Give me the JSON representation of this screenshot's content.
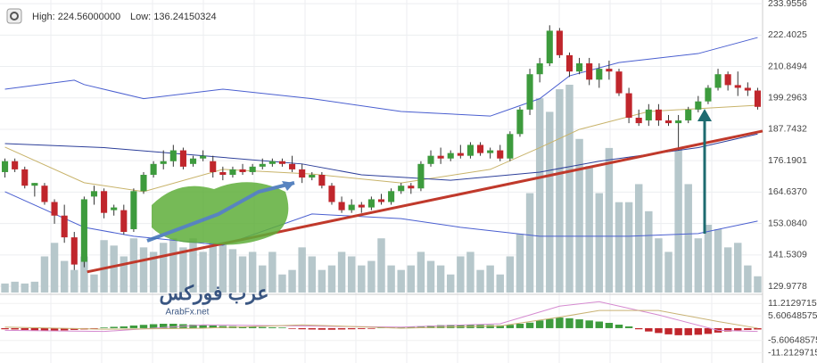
{
  "chart_data": {
    "type": "candlestick",
    "stats": [
      "High: 224.56000000",
      "Low: 136.24150324"
    ],
    "ylim": [
      127.7,
      235.3
    ],
    "yticks": [
      233.9556,
      222.4025,
      210.8494,
      199.2963,
      187.7432,
      176.1901,
      {
        "value": 164.637,
        "label": "164.6370"
      },
      {
        "value": 153.084,
        "label": "153.0840"
      },
      141.5309,
      129.9778
    ],
    "grid": true,
    "up_color": "#3d9b3d",
    "down_color": "#c0262c",
    "open": [
      172,
      176,
      173,
      167,
      167,
      161,
      156,
      148,
      139,
      163,
      165,
      158,
      158,
      151,
      165,
      171,
      175,
      176,
      180,
      175,
      177,
      176,
      172,
      171,
      173,
      172,
      174,
      175,
      176,
      175,
      173,
      170,
      171,
      167,
      161,
      158,
      160,
      159,
      162,
      161,
      165,
      167,
      166,
      175,
      178,
      177,
      179,
      178,
      182,
      179,
      180,
      177,
      186,
      195,
      208,
      212,
      224,
      215,
      209,
      212,
      206,
      210,
      209,
      201,
      192,
      191,
      195,
      191,
      190,
      191,
      195,
      198,
      203,
      208,
      204,
      203,
      202
    ],
    "high": [
      177,
      177,
      174,
      168,
      168,
      162,
      160,
      150,
      163,
      167,
      166,
      160,
      160,
      166,
      172,
      176,
      180,
      182,
      181,
      178,
      180,
      178,
      174,
      174,
      175,
      175,
      177,
      177,
      177,
      178,
      175,
      172,
      172,
      168,
      163,
      162,
      161,
      163,
      164,
      166,
      168,
      168,
      176,
      180,
      181,
      180,
      182,
      183,
      183,
      181,
      182,
      187,
      196,
      210,
      214,
      226,
      225,
      216,
      214,
      214,
      212,
      213,
      210,
      203,
      195,
      197,
      197,
      193,
      193,
      196,
      200,
      204,
      210,
      209,
      209,
      205,
      203
    ],
    "low": [
      170,
      172,
      166,
      163,
      160,
      153,
      146,
      136,
      137,
      160,
      155,
      156,
      149,
      150,
      164,
      170,
      173,
      174,
      173,
      174,
      176,
      170,
      169,
      170,
      171,
      171,
      173,
      174,
      174,
      172,
      168,
      169,
      166,
      160,
      157,
      157,
      157,
      158,
      160,
      160,
      164,
      164,
      165,
      174,
      175,
      176,
      177,
      177,
      178,
      177,
      176,
      176,
      185,
      193,
      205,
      211,
      214,
      207,
      208,
      204,
      203,
      206,
      200,
      190,
      189,
      189,
      189,
      189,
      180,
      190,
      194,
      197,
      202,
      202,
      200,
      200,
      195
    ],
    "close": [
      176,
      173,
      167,
      168,
      161,
      156,
      148,
      138,
      162,
      165,
      157,
      159,
      150,
      165,
      171,
      175,
      176,
      180,
      174,
      177,
      178,
      172,
      171,
      173,
      172,
      174,
      175,
      176,
      175,
      173,
      170,
      171,
      167,
      161,
      158,
      160,
      159,
      162,
      161,
      165,
      167,
      166,
      175,
      178,
      177,
      179,
      178,
      182,
      179,
      180,
      177,
      186,
      195,
      208,
      212,
      224,
      215,
      209,
      212,
      206,
      210,
      209,
      201,
      192,
      190,
      195,
      191,
      190,
      191,
      195,
      198,
      203,
      208,
      204,
      203,
      202,
      196
    ],
    "volume": {
      "color": "#b6c7cb",
      "values": [
        10,
        12,
        10,
        12,
        40,
        55,
        35,
        25,
        40,
        20,
        58,
        52,
        40,
        60,
        50,
        45,
        55,
        60,
        50,
        60,
        45,
        55,
        55,
        48,
        40,
        45,
        30,
        45,
        20,
        25,
        50,
        40,
        25,
        30,
        45,
        40,
        30,
        35,
        60,
        30,
        25,
        30,
        45,
        35,
        30,
        20,
        40,
        45,
        25,
        30,
        20,
        40,
        65,
        110,
        215,
        200,
        225,
        230,
        170,
        140,
        110,
        160,
        100,
        100,
        120,
        90,
        60,
        45,
        160,
        120,
        60,
        75,
        70,
        50,
        55,
        30,
        18
      ]
    },
    "lines": [
      {
        "color": "#4a5fd0",
        "x": [
          0,
          7,
          8,
          14,
          22,
          31,
          40,
          49,
          54,
          57,
          62,
          70,
          76
        ],
        "values": [
          202.5,
          205.8,
          204.2,
          199,
          202.5,
          199,
          194.3,
          192.6,
          199,
          207.4,
          212.3,
          215.6,
          221.5
        ]
      },
      {
        "color": "#c8b36a",
        "x": [
          0,
          8,
          14,
          22,
          31,
          40,
          49,
          54,
          58,
          65,
          76
        ],
        "values": [
          181.2,
          168.1,
          164.8,
          173,
          171.3,
          168,
          173,
          181,
          187.7,
          194.3,
          196.6
        ]
      },
      {
        "color": "#4a5fd0",
        "x": [
          0,
          8,
          13,
          22,
          31,
          40,
          46,
          54,
          63,
          70,
          76
        ],
        "values": [
          164.8,
          151.7,
          148.4,
          145.1,
          156.6,
          154.9,
          151.7,
          148.4,
          148.4,
          149.4,
          154
        ]
      },
      {
        "color": "#2d3f9a",
        "x": [
          0,
          10,
          20,
          30,
          36,
          45,
          54,
          60,
          70,
          76
        ],
        "values": [
          182.5,
          181,
          178,
          175,
          171,
          169,
          172,
          176,
          181,
          186
        ]
      }
    ],
    "trendline": {
      "color": "#c0392b",
      "x": [
        8.3,
        76.5
      ],
      "values": [
        135.3,
        187.1
      ]
    },
    "macd": {
      "ylim": [
        -15.8,
        15.35
      ],
      "yticks": [
        {
          "value": 11.2129715,
          "label": "11.21297150"
        },
        5.60648575,
        -5.60648575,
        {
          "value": -11.2129715,
          "label": "-11.21297150"
        }
      ],
      "pos_color": "#3d9b3d",
      "neg_color": "#c0262c",
      "histogram": [
        -0.5,
        -0.6,
        -0.8,
        -1,
        -1.2,
        -1.2,
        -1,
        -0.8,
        -0.6,
        -0.4,
        0.3,
        0.6,
        0.8,
        1.2,
        1.5,
        1.8,
        2,
        2,
        1.8,
        1.6,
        1.4,
        1.2,
        1,
        0.9,
        0.8,
        0.6,
        0.5,
        0.4,
        0.3,
        -0.3,
        -0.5,
        -0.6,
        -0.7,
        -0.7,
        -0.6,
        -0.5,
        -0.4,
        -0.3,
        0.3,
        0.4,
        0.5,
        0.7,
        0.9,
        1.2,
        1.4,
        1.5,
        1.5,
        1.6,
        1.5,
        1.4,
        1.3,
        1.5,
        2,
        2.5,
        3.5,
        4.2,
        4.8,
        4.5,
        4,
        3.5,
        3,
        2.4,
        1.6,
        0.8,
        -0.5,
        -1.5,
        -2.2,
        -2.8,
        -3.2,
        -3.2,
        -3,
        -2.6,
        -2,
        -1.5,
        -1,
        -0.8,
        -0.6
      ],
      "lines": [
        {
          "color": "#d58ad0",
          "x": [
            0,
            10,
            20,
            30,
            40,
            50,
            56,
            60,
            66,
            72,
            76
          ],
          "values": [
            -1,
            -1.5,
            1.5,
            1,
            0.5,
            2,
            10,
            12,
            6,
            -1,
            -1.5
          ]
        },
        {
          "color": "#c9b274",
          "x": [
            0,
            10,
            20,
            30,
            40,
            50,
            56,
            60,
            66,
            72,
            76
          ],
          "values": [
            0.5,
            -0.5,
            0,
            1.5,
            0,
            1,
            5,
            8,
            8,
            3,
            0
          ]
        }
      ]
    },
    "watermark": {
      "arabic": "عرب فوركس",
      "site": "ArabFx.net"
    }
  }
}
